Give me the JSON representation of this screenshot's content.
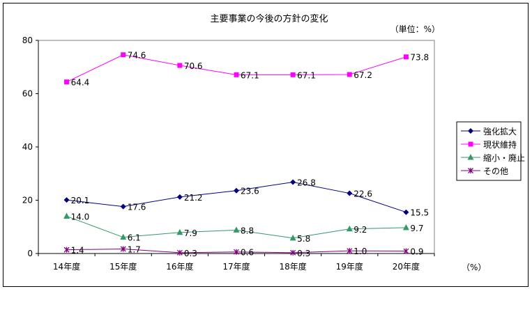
{
  "chart_data": {
    "type": "line",
    "title": "主要事業の今後の方針の変化",
    "unit_note": "（単位：%）",
    "x_unit": "（%）",
    "categories": [
      "14年度",
      "15年度",
      "16年度",
      "17年度",
      "18年度",
      "19年度",
      "20年度"
    ],
    "ylim": [
      0,
      80
    ],
    "yticks": [
      0,
      20,
      40,
      60,
      80
    ],
    "grid": false,
    "legend_position": "right",
    "series": [
      {
        "name": "強化拡大",
        "values": [
          20.1,
          17.6,
          21.2,
          23.6,
          26.8,
          22.6,
          15.5
        ],
        "labels": [
          "20.1",
          "17.6",
          "21.2",
          "23.6",
          "26.8",
          "22.6",
          "15.5"
        ],
        "color": "#000080",
        "marker": "diamond"
      },
      {
        "name": "現状維持",
        "values": [
          64.4,
          74.6,
          70.6,
          67.1,
          67.1,
          67.2,
          73.8
        ],
        "labels": [
          "64.4",
          "74.6",
          "70.6",
          "67.1",
          "67.1",
          "67.2",
          "73.8"
        ],
        "color": "#ff00ff",
        "marker": "square"
      },
      {
        "name": "縮小・廃止",
        "values": [
          14.0,
          6.1,
          7.9,
          8.8,
          5.8,
          9.2,
          9.7
        ],
        "labels": [
          "14.0",
          "6.1",
          "7.9",
          "8.8",
          "5.8",
          "9.2",
          "9.7"
        ],
        "color": "#339966",
        "marker": "triangle"
      },
      {
        "name": "その他",
        "values": [
          1.4,
          1.7,
          0.3,
          0.6,
          0.3,
          1.0,
          0.9
        ],
        "labels": [
          "1.4",
          "1.7",
          "0.3",
          "0.6",
          "0.3",
          "1.0",
          "0.9"
        ],
        "color": "#800080",
        "marker": "star"
      }
    ]
  }
}
